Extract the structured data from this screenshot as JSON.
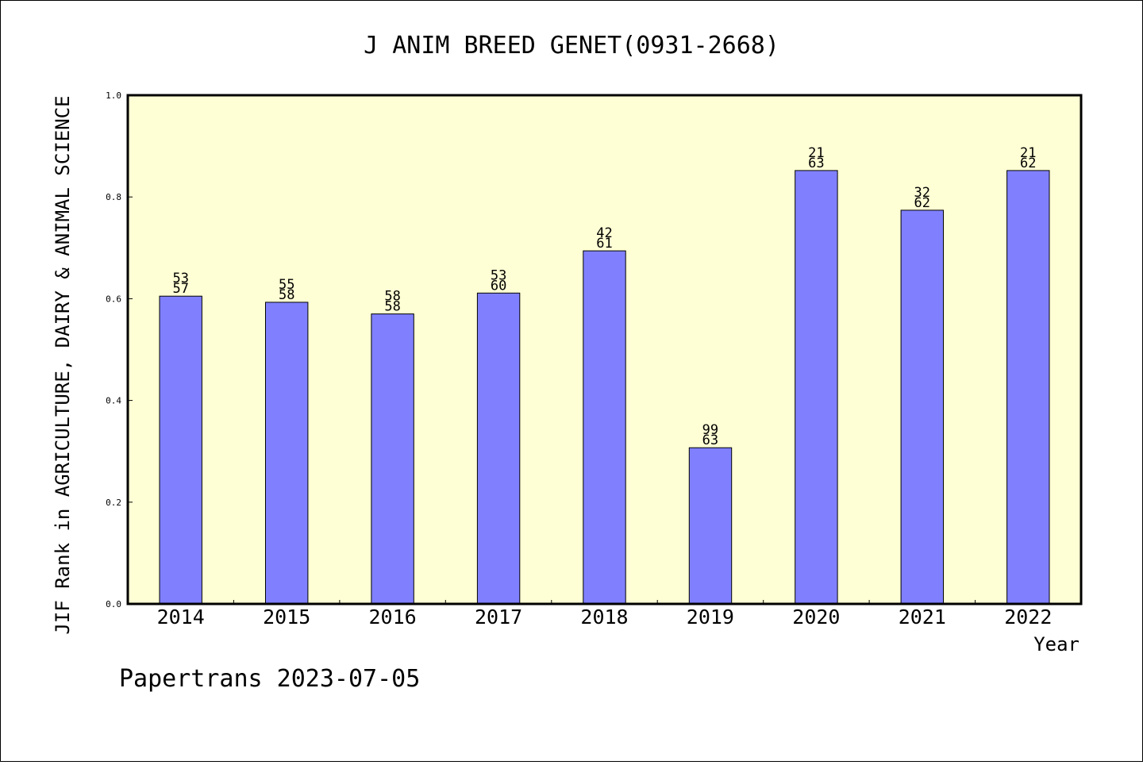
{
  "chart_data": {
    "type": "bar",
    "title": "J ANIM BREED GENET(0931-2668)",
    "xlabel": "Year",
    "ylabel": "JIF Rank in AGRICULTURE, DAIRY & ANIMAL SCIENCE",
    "ylim": [
      0,
      1.0
    ],
    "yticks": [
      "0.0",
      "0.2",
      "0.4",
      "0.6",
      "0.8",
      "1.0"
    ],
    "categories": [
      "2014",
      "2015",
      "2016",
      "2017",
      "2018",
      "2019",
      "2020",
      "2021",
      "2022"
    ],
    "values": [
      0.605,
      0.593,
      0.57,
      0.611,
      0.694,
      0.307,
      0.852,
      0.774,
      0.852
    ],
    "rank_labels": [
      "53",
      "55",
      "58",
      "53",
      "42",
      "99",
      "21",
      "32",
      "21"
    ],
    "total_labels": [
      "57",
      "58",
      "58",
      "60",
      "61",
      "63",
      "63",
      "62",
      "62"
    ],
    "grid": false,
    "bar_color": "#8080ff",
    "plot_background": "#ffffd5"
  },
  "footer": "Papertrans 2023-07-05"
}
